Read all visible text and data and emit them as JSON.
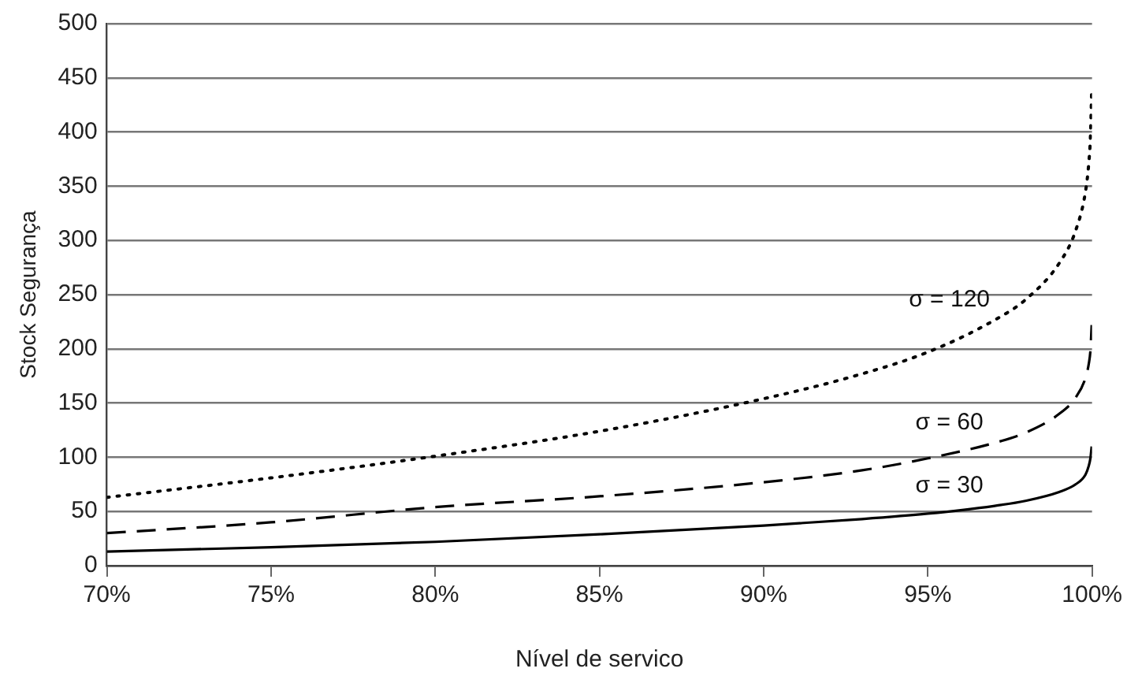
{
  "chart_data": {
    "type": "line",
    "xlabel": "Nível de servico",
    "ylabel": "Stock Segurança",
    "x": [
      70,
      75,
      80,
      85,
      90,
      93,
      95,
      97,
      98,
      99,
      99.5,
      99.8,
      99.9,
      99.95,
      99.99
    ],
    "series": [
      {
        "name": "σ = 30",
        "color": "#000000",
        "line_style": "solid",
        "values": [
          13,
          17,
          22,
          29,
          37,
          43,
          48,
          55,
          60,
          68,
          75,
          84,
          92,
          99,
          110
        ]
      },
      {
        "name": "σ = 60",
        "color": "#000000",
        "line_style": "dashed",
        "values": [
          30,
          40,
          54,
          64,
          77,
          88,
          99,
          113,
          123,
          140,
          155,
          173,
          186,
          198,
          222
        ]
      },
      {
        "name": "σ = 120",
        "color": "#000000",
        "line_style": "dotted",
        "values": [
          63,
          81,
          101,
          124,
          154,
          177,
          197,
          226,
          246,
          279,
          309,
          345,
          371,
          395,
          440
        ]
      }
    ],
    "xlim": [
      70,
      100
    ],
    "xticks": [
      {
        "value": 70,
        "label": "70%"
      },
      {
        "value": 75,
        "label": "75%"
      },
      {
        "value": 80,
        "label": "80%"
      },
      {
        "value": 85,
        "label": "85%"
      },
      {
        "value": 90,
        "label": "90%"
      },
      {
        "value": 95,
        "label": "95%"
      },
      {
        "value": 100,
        "label": "100%"
      }
    ],
    "ylim": [
      0,
      500
    ],
    "yticks": [
      0,
      50,
      100,
      150,
      200,
      250,
      300,
      350,
      400,
      450,
      500
    ],
    "grid": "y",
    "legend": false,
    "marker": "none"
  }
}
